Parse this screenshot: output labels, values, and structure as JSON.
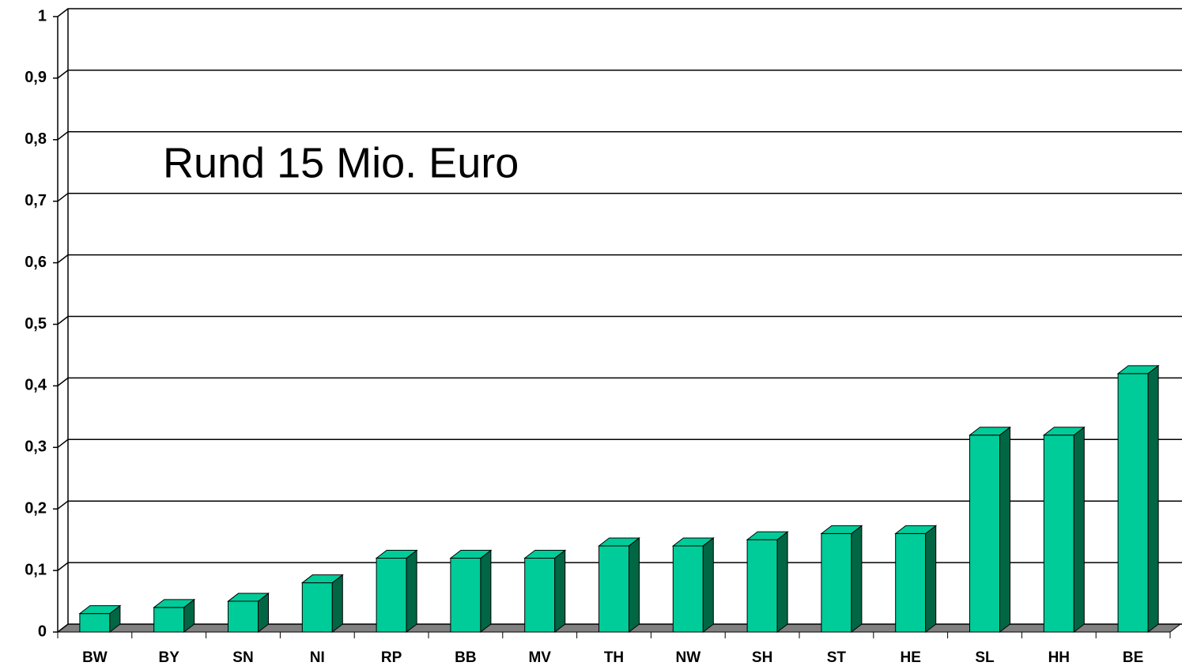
{
  "chart_data": {
    "type": "bar3d",
    "annotation": "Rund 15 Mio. Euro",
    "categories": [
      "BW",
      "BY",
      "SN",
      "NI",
      "RP",
      "BB",
      "MV",
      "TH",
      "NW",
      "SH",
      "ST",
      "HE",
      "SL",
      "HH",
      "BE"
    ],
    "values": [
      0.03,
      0.04,
      0.05,
      0.08,
      0.12,
      0.12,
      0.12,
      0.14,
      0.14,
      0.15,
      0.16,
      0.16,
      0.32,
      0.32,
      0.42
    ],
    "color": "#00cc99",
    "ylim": [
      0,
      1
    ],
    "yticks": [
      0,
      {
        "value": 0.1,
        "label": "0,1"
      },
      {
        "value": 0.2,
        "label": "0,2"
      },
      {
        "value": 0.3,
        "label": "0,3"
      },
      {
        "value": 0.4,
        "label": "0,4"
      },
      {
        "value": 0.5,
        "label": "0,5"
      },
      {
        "value": 0.6,
        "label": "0,6"
      },
      {
        "value": 0.7,
        "label": "0,7"
      },
      {
        "value": 0.8,
        "label": "0,8"
      },
      {
        "value": 0.9,
        "label": "0,9"
      },
      1
    ],
    "grid": true
  }
}
